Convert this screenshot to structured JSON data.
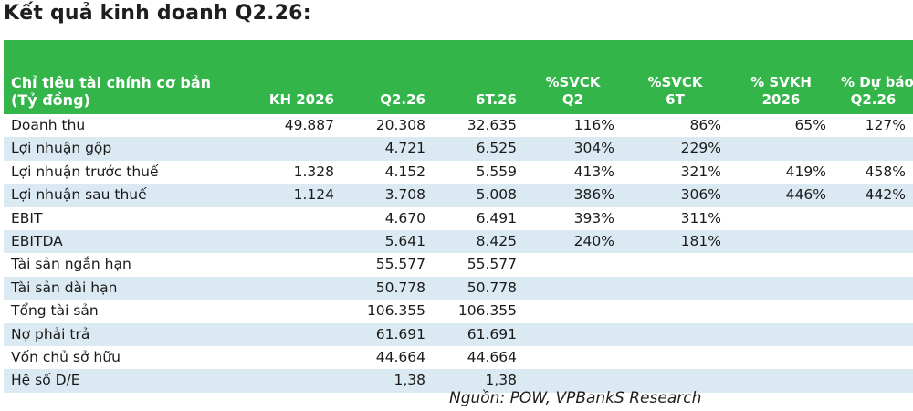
{
  "title": "Kết quả kinh doanh Q2.26:",
  "header": {
    "metric_line1": "Chỉ tiêu tài chính cơ bản",
    "metric_line2": "(Tỷ đồng)",
    "kh2026": "KH 2026",
    "q2": "Q2.26",
    "t6": "6T.26",
    "svck_q2_line1": "%SVCK",
    "svck_q2_line2": "Q2",
    "svck_6t_line1": "%SVCK",
    "svck_6t_line2": "6T",
    "svkh_line1": "% SVKH",
    "svkh_line2": "2026",
    "dubao_line1": "% Dự báo",
    "dubao_line2": "Q2.26"
  },
  "rows": [
    {
      "label": "Doanh thu",
      "kh": "49.887",
      "q2": "20.308",
      "t6": "32.635",
      "svck_q2": "116%",
      "svck_6t": "86%",
      "svkh": "65%",
      "dubao": "127%"
    },
    {
      "label": "Lợi nhuận gộp",
      "kh": "",
      "q2": "4.721",
      "t6": "6.525",
      "svck_q2": "304%",
      "svck_6t": "229%",
      "svkh": "",
      "dubao": ""
    },
    {
      "label": "Lợi nhuận trước thuế",
      "kh": "1.328",
      "q2": "4.152",
      "t6": "5.559",
      "svck_q2": "413%",
      "svck_6t": "321%",
      "svkh": "419%",
      "dubao": "458%"
    },
    {
      "label": "Lợi nhuận sau thuế",
      "kh": "1.124",
      "q2": "3.708",
      "t6": "5.008",
      "svck_q2": "386%",
      "svck_6t": "306%",
      "svkh": "446%",
      "dubao": "442%"
    },
    {
      "label": "EBIT",
      "kh": "",
      "q2": "4.670",
      "t6": "6.491",
      "svck_q2": "393%",
      "svck_6t": "311%",
      "svkh": "",
      "dubao": ""
    },
    {
      "label": "EBITDA",
      "kh": "",
      "q2": "5.641",
      "t6": "8.425",
      "svck_q2": "240%",
      "svck_6t": "181%",
      "svkh": "",
      "dubao": ""
    },
    {
      "label": "Tài sản ngắn hạn",
      "kh": "",
      "q2": "55.577",
      "t6": "55.577",
      "svck_q2": "",
      "svck_6t": "",
      "svkh": "",
      "dubao": ""
    },
    {
      "label": "Tài sản dài hạn",
      "kh": "",
      "q2": "50.778",
      "t6": "50.778",
      "svck_q2": "",
      "svck_6t": "",
      "svkh": "",
      "dubao": ""
    },
    {
      "label": "Tổng tài sản",
      "kh": "",
      "q2": "106.355",
      "t6": "106.355",
      "svck_q2": "",
      "svck_6t": "",
      "svkh": "",
      "dubao": ""
    },
    {
      "label": "Nợ phải trả",
      "kh": "",
      "q2": "61.691",
      "t6": "61.691",
      "svck_q2": "",
      "svck_6t": "",
      "svkh": "",
      "dubao": ""
    },
    {
      "label": "Vốn chủ sở hữu",
      "kh": "",
      "q2": "44.664",
      "t6": "44.664",
      "svck_q2": "",
      "svck_6t": "",
      "svkh": "",
      "dubao": ""
    },
    {
      "label": "Hệ số D/E",
      "kh": "",
      "q2": "1,38",
      "t6": "1,38",
      "svck_q2": "",
      "svck_6t": "",
      "svkh": "",
      "dubao": ""
    }
  ],
  "source": "Nguồn: POW, VPBankS Research",
  "colors": {
    "header_bg": "#33b54a",
    "stripe": "#dbe9f2"
  }
}
